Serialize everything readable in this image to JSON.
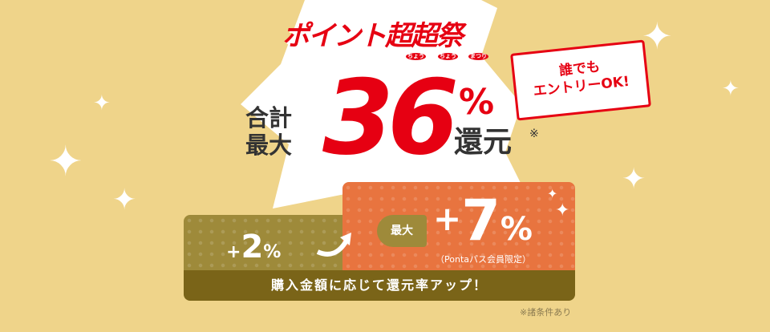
{
  "title": {
    "text": "ポイント超超祭",
    "ruby": [
      "ちょう",
      "ちょう",
      "まつり"
    ]
  },
  "headline": {
    "prefix_line1": "合計",
    "prefix_line2": "最大",
    "number": "36",
    "percent": "%",
    "suffix": "還元",
    "asterisk": "※"
  },
  "bubble": {
    "line1": "誰でも",
    "line2": "エントリーOK!"
  },
  "left_box": {
    "plus": "+",
    "value": "2",
    "percent": "%"
  },
  "right_box": {
    "badge": "最大",
    "plus": "+",
    "value": "7",
    "percent": "%",
    "note": "（Pontaパス会員限定）"
  },
  "band": {
    "text": "購入金額に応じて還元率アップ！"
  },
  "footnote": "※諸条件あり",
  "colors": {
    "background": "#efd48a",
    "red": "#e60012",
    "orange": "#e8743f",
    "olive": "#9e8a3a",
    "dark_olive": "#7a6418"
  }
}
